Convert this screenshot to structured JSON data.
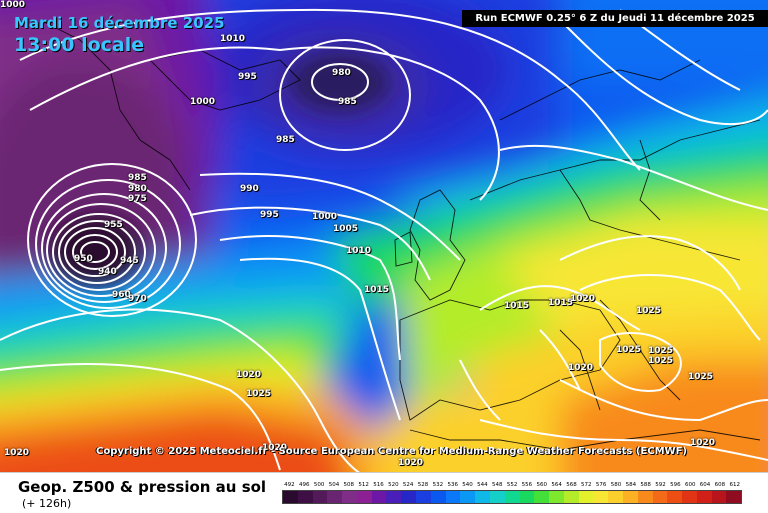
{
  "header": {
    "date": "Mardi 16 décembre 2025",
    "time": "13:00 locale",
    "run_info": "Run ECMWF 0.25° 6 Z du Jeudi 11 décembre 2025"
  },
  "copyright": "Copyright © 2025 Meteociel.fr - Source European Centre for Medium-Range Weather Forecasts (ECMWF)",
  "footer": {
    "title": "Geop. Z500 & pression au sol",
    "forecast_hour": "(+ 126h)"
  },
  "legend": {
    "values": [
      "492",
      "496",
      "500",
      "504",
      "508",
      "512",
      "516",
      "520",
      "524",
      "528",
      "532",
      "536",
      "540",
      "544",
      "548",
      "552",
      "556",
      "560",
      "564",
      "568",
      "572",
      "576",
      "580",
      "584",
      "588",
      "592",
      "596",
      "600",
      "604",
      "608",
      "612"
    ],
    "colors": [
      "#2a0a2e",
      "#3d0f44",
      "#531a5a",
      "#6a2572",
      "#7f2d88",
      "#8c1f93",
      "#6c17a6",
      "#4a1eb8",
      "#2727c8",
      "#1a3ee0",
      "#0b58f0",
      "#0a78f8",
      "#0a98f4",
      "#10b8e8",
      "#14d0c8",
      "#10d890",
      "#18d860",
      "#44e03a",
      "#7ee82c",
      "#b4ec2a",
      "#e4f02c",
      "#f8e634",
      "#fcd02c",
      "#fcb024",
      "#f88a1c",
      "#f46a18",
      "#ec4e14",
      "#e03414",
      "#d02018",
      "#b8141c",
      "#900c20"
    ]
  },
  "isobar_labels": [
    "1010",
    "995",
    "980",
    "985",
    "1000",
    "985",
    "985",
    "980",
    "975",
    "990",
    "955",
    "995",
    "1000",
    "1005",
    "1010",
    "950",
    "940",
    "945",
    "960",
    "970",
    "1015",
    "1015",
    "1015",
    "1020",
    "1025",
    "1025",
    "1025",
    "1020",
    "1025",
    "1020",
    "1025",
    "1020",
    "1020",
    "1020",
    "1020",
    "1025",
    "1000"
  ]
}
